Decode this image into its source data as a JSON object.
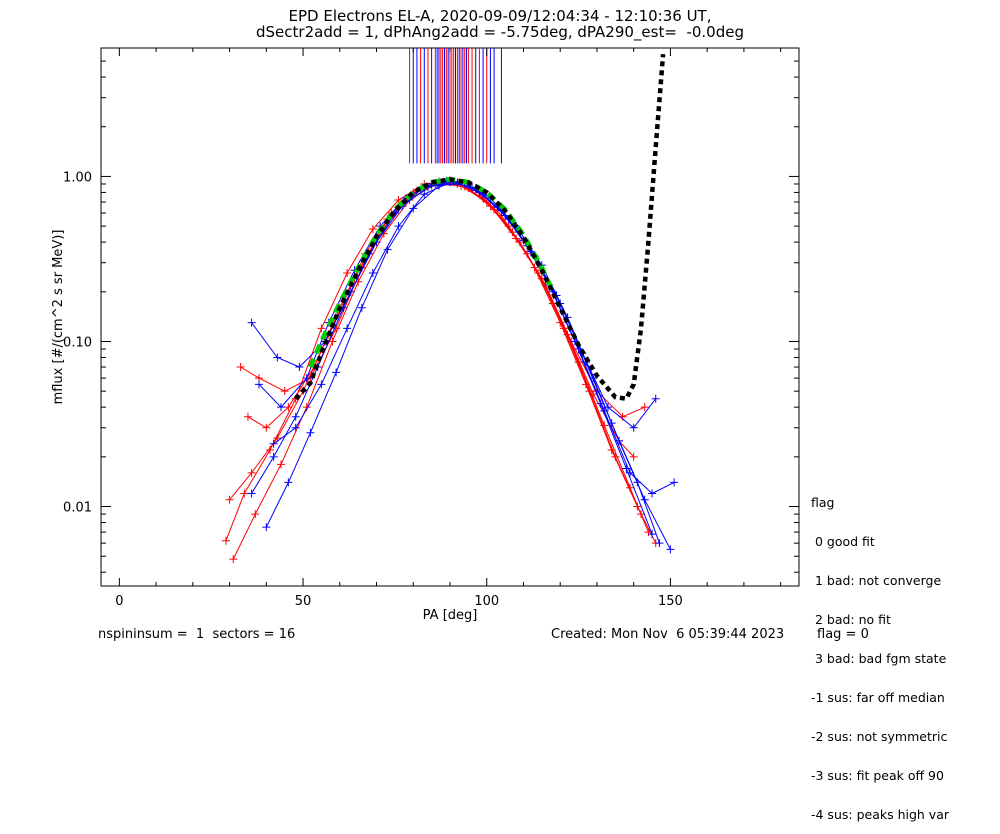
{
  "header": {
    "title_line1": "EPD Electrons EL-A, 2020-09-09/12:04:34 - 12:10:36 UT,",
    "title_line2": "dSectr2add = 1, dPhAng2add = -5.75deg, dPA290_est=  -0.0deg"
  },
  "footer": {
    "left": "nspininsum =  1  sectors = 16",
    "created": "Created: Mon Nov  6 05:39:44 2023",
    "flag": "flag = 0"
  },
  "legend": {
    "title": "flag",
    "items": [
      " 0 good fit",
      " 1 bad: not converge",
      " 2 bad: no fit",
      " 3 bad: bad fgm state",
      "-1 sus: far off median",
      "-2 sus: not symmetric",
      "-3 sus: fit peak off 90",
      "-4 sus: peaks high var"
    ]
  },
  "chart_data": {
    "type": "line",
    "title": "EPD Electrons EL-A, 2020-09-09/12:04:34 - 12:10:36 UT, dSectr2add = 1, dPhAng2add = -5.75deg, dPA290_est=  -0.0deg",
    "xlabel": "PA [deg]",
    "ylabel": "mflux [#/(cm^2 s sr MeV)]",
    "xlim": [
      -5,
      185
    ],
    "ylim": [
      0.0033,
      6
    ],
    "yscale": "log",
    "xticks": [
      0,
      50,
      100,
      150
    ],
    "yticks": [
      0.01,
      0.1,
      1.0
    ],
    "ytick_labels": [
      "0.01",
      "0.10",
      "1.00"
    ],
    "colors": {
      "red": "#ff0000",
      "blue": "#0000ff",
      "green": "#00cc00",
      "black": "#000000"
    },
    "series": [
      {
        "color": "#ff0000",
        "style": "line+plus",
        "values": [
          [
            [
              29,
              0.0062
            ],
            [
              34,
              0.012
            ],
            [
              41,
              0.022
            ],
            [
              48,
              0.045
            ],
            [
              55,
              0.12
            ],
            [
              62,
              0.26
            ],
            [
              69,
              0.48
            ],
            [
              76,
              0.72
            ],
            [
              83,
              0.9
            ],
            [
              90,
              0.95
            ],
            [
              97,
              0.82
            ],
            [
              104,
              0.58
            ],
            [
              111,
              0.34
            ],
            [
              118,
              0.17
            ],
            [
              125,
              0.075
            ],
            [
              132,
              0.031
            ],
            [
              139,
              0.013
            ],
            [
              144,
              0.007
            ]
          ],
          [
            [
              31,
              0.0048
            ],
            [
              37,
              0.009
            ],
            [
              44,
              0.018
            ],
            [
              51,
              0.04
            ],
            [
              58,
              0.1
            ],
            [
              65,
              0.23
            ],
            [
              72,
              0.45
            ],
            [
              79,
              0.72
            ],
            [
              86,
              0.9
            ],
            [
              93,
              0.88
            ],
            [
              100,
              0.7
            ],
            [
              107,
              0.46
            ],
            [
              114,
              0.26
            ],
            [
              121,
              0.12
            ],
            [
              128,
              0.05
            ],
            [
              135,
              0.02
            ],
            [
              142,
              0.009
            ]
          ],
          [
            [
              35,
              0.035
            ],
            [
              40,
              0.03
            ],
            [
              46,
              0.04
            ],
            [
              53,
              0.07
            ],
            [
              60,
              0.16
            ],
            [
              67,
              0.34
            ],
            [
              74,
              0.6
            ],
            [
              81,
              0.82
            ],
            [
              88,
              0.92
            ],
            [
              95,
              0.85
            ],
            [
              102,
              0.63
            ],
            [
              109,
              0.4
            ],
            [
              116,
              0.22
            ],
            [
              123,
              0.1
            ],
            [
              130,
              0.05
            ],
            [
              137,
              0.035
            ],
            [
              143,
              0.04
            ]
          ],
          [
            [
              30,
              0.011
            ],
            [
              36,
              0.016
            ],
            [
              43,
              0.026
            ],
            [
              50,
              0.05
            ],
            [
              57,
              0.11
            ],
            [
              64,
              0.24
            ],
            [
              71,
              0.46
            ],
            [
              78,
              0.7
            ],
            [
              85,
              0.88
            ],
            [
              92,
              0.9
            ],
            [
              99,
              0.74
            ],
            [
              106,
              0.5
            ],
            [
              113,
              0.28
            ],
            [
              120,
              0.13
            ],
            [
              127,
              0.055
            ],
            [
              134,
              0.022
            ],
            [
              141,
              0.01
            ],
            [
              146,
              0.006
            ]
          ],
          [
            [
              33,
              0.07
            ],
            [
              38,
              0.06
            ],
            [
              45,
              0.05
            ],
            [
              52,
              0.06
            ],
            [
              59,
              0.12
            ],
            [
              66,
              0.28
            ],
            [
              73,
              0.55
            ],
            [
              80,
              0.8
            ],
            [
              87,
              0.93
            ],
            [
              94,
              0.87
            ],
            [
              101,
              0.66
            ],
            [
              108,
              0.42
            ],
            [
              115,
              0.24
            ],
            [
              122,
              0.11
            ],
            [
              129,
              0.048
            ],
            [
              136,
              0.025
            ],
            [
              140,
              0.02
            ]
          ]
        ]
      },
      {
        "color": "#0000ff",
        "style": "line+plus",
        "values": [
          [
            [
              36,
              0.012
            ],
            [
              42,
              0.02
            ],
            [
              48,
              0.035
            ],
            [
              54,
              0.07
            ],
            [
              61,
              0.16
            ],
            [
              68,
              0.34
            ],
            [
              75,
              0.6
            ],
            [
              82,
              0.83
            ],
            [
              89,
              0.94
            ],
            [
              96,
              0.86
            ],
            [
              103,
              0.65
            ],
            [
              110,
              0.41
            ],
            [
              117,
              0.22
            ],
            [
              124,
              0.1
            ],
            [
              131,
              0.042
            ],
            [
              138,
              0.017
            ],
            [
              145,
              0.0068
            ]
          ],
          [
            [
              38,
              0.055
            ],
            [
              44,
              0.04
            ],
            [
              51,
              0.06
            ],
            [
              57,
              0.13
            ],
            [
              64,
              0.27
            ],
            [
              71,
              0.5
            ],
            [
              78,
              0.74
            ],
            [
              85,
              0.9
            ],
            [
              92,
              0.92
            ],
            [
              99,
              0.78
            ],
            [
              106,
              0.55
            ],
            [
              113,
              0.33
            ],
            [
              120,
              0.17
            ],
            [
              127,
              0.075
            ],
            [
              134,
              0.032
            ],
            [
              141,
              0.014
            ],
            [
              147,
              0.006
            ]
          ],
          [
            [
              40,
              0.0075
            ],
            [
              46,
              0.014
            ],
            [
              52,
              0.028
            ],
            [
              59,
              0.065
            ],
            [
              66,
              0.16
            ],
            [
              73,
              0.36
            ],
            [
              80,
              0.64
            ],
            [
              87,
              0.88
            ],
            [
              94,
              0.91
            ],
            [
              101,
              0.74
            ],
            [
              108,
              0.5
            ],
            [
              115,
              0.29
            ],
            [
              122,
              0.14
            ],
            [
              129,
              0.06
            ],
            [
              136,
              0.025
            ],
            [
              143,
              0.011
            ],
            [
              150,
              0.0055
            ]
          ],
          [
            [
              36,
              0.13
            ],
            [
              43,
              0.08
            ],
            [
              49,
              0.07
            ],
            [
              56,
              0.1
            ],
            [
              63,
              0.2
            ],
            [
              70,
              0.4
            ],
            [
              77,
              0.66
            ],
            [
              84,
              0.86
            ],
            [
              91,
              0.93
            ],
            [
              98,
              0.8
            ],
            [
              105,
              0.58
            ],
            [
              112,
              0.35
            ],
            [
              119,
              0.19
            ],
            [
              126,
              0.085
            ],
            [
              133,
              0.04
            ],
            [
              140,
              0.03
            ],
            [
              146,
              0.045
            ]
          ],
          [
            [
              42,
              0.024
            ],
            [
              48,
              0.03
            ],
            [
              55,
              0.055
            ],
            [
              62,
              0.12
            ],
            [
              69,
              0.26
            ],
            [
              76,
              0.5
            ],
            [
              83,
              0.78
            ],
            [
              90,
              0.92
            ],
            [
              97,
              0.85
            ],
            [
              104,
              0.62
            ],
            [
              111,
              0.38
            ],
            [
              118,
              0.2
            ],
            [
              125,
              0.09
            ],
            [
              132,
              0.038
            ],
            [
              139,
              0.016
            ],
            [
              145,
              0.012
            ],
            [
              151,
              0.014
            ]
          ]
        ]
      },
      {
        "name": "",
        "color": "#00cc00",
        "style": "dashed-fit",
        "values": [
          [
            52,
            0.07
          ],
          [
            55,
            0.1
          ],
          [
            60,
            0.17
          ],
          [
            65,
            0.28
          ],
          [
            70,
            0.44
          ],
          [
            75,
            0.63
          ],
          [
            80,
            0.8
          ],
          [
            85,
            0.92
          ],
          [
            90,
            0.96
          ],
          [
            95,
            0.92
          ],
          [
            100,
            0.8
          ],
          [
            105,
            0.63
          ],
          [
            110,
            0.44
          ],
          [
            115,
            0.28
          ],
          [
            118,
            0.2
          ]
        ]
      },
      {
        "name": "",
        "color": "#000000",
        "style": "dotted-fit",
        "values": [
          [
            48,
            0.045
          ],
          [
            52,
            0.056
          ],
          [
            55,
            0.085
          ],
          [
            60,
            0.16
          ],
          [
            65,
            0.27
          ],
          [
            70,
            0.43
          ],
          [
            75,
            0.62
          ],
          [
            80,
            0.8
          ],
          [
            85,
            0.92
          ],
          [
            90,
            0.96
          ],
          [
            95,
            0.92
          ],
          [
            100,
            0.8
          ],
          [
            105,
            0.62
          ],
          [
            110,
            0.43
          ],
          [
            115,
            0.27
          ],
          [
            120,
            0.16
          ],
          [
            125,
            0.095
          ],
          [
            130,
            0.062
          ],
          [
            135,
            0.046
          ],
          [
            138,
            0.045
          ],
          [
            140,
            0.055
          ],
          [
            142,
            0.12
          ],
          [
            144,
            0.4
          ],
          [
            146,
            1.5
          ],
          [
            148,
            5.5
          ]
        ]
      }
    ],
    "vertical_marks": {
      "y_range": [
        1.2,
        6
      ],
      "red_x": [
        79,
        82,
        84,
        86,
        87.5,
        88,
        89,
        90,
        90.5,
        91,
        92,
        93,
        94,
        95,
        96,
        98,
        100
      ],
      "blue_x": [
        80,
        81,
        83,
        85,
        86.5,
        87,
        88.5,
        89.5,
        91.5,
        92.5,
        93.5,
        94.5,
        97,
        99,
        101,
        102,
        104
      ]
    }
  }
}
